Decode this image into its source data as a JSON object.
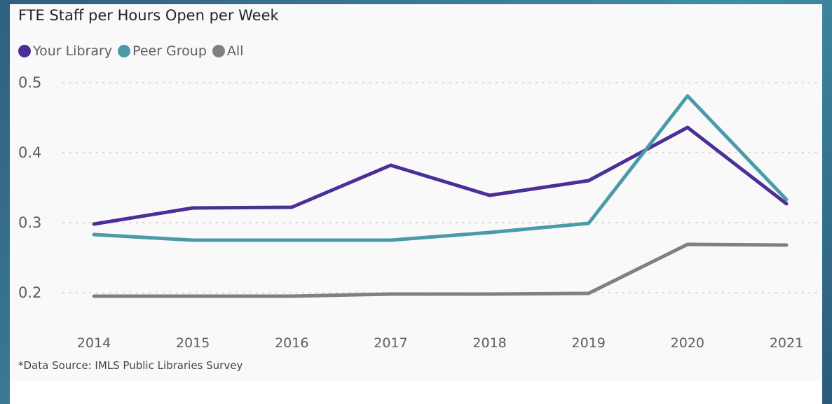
{
  "chart_data": {
    "type": "line",
    "title": "FTE Staff per Hours Open per Week",
    "xlabel": "",
    "ylabel": "",
    "x": [
      "2014",
      "2015",
      "2016",
      "2017",
      "2018",
      "2019",
      "2020",
      "2021"
    ],
    "yticks": [
      "0.5",
      "0.4",
      "0.3",
      "0.2"
    ],
    "ylim": [
      0.2,
      0.5
    ],
    "grid": true,
    "legend_position": "top-left",
    "series": [
      {
        "name": "Your Library",
        "color": "#4b2f96",
        "values": [
          0.298,
          0.321,
          0.322,
          0.382,
          0.339,
          0.36,
          0.436,
          0.327
        ]
      },
      {
        "name": "Peer Group",
        "color": "#4a9aa9",
        "values": [
          0.283,
          0.275,
          0.275,
          0.275,
          0.286,
          0.299,
          0.481,
          0.333
        ]
      },
      {
        "name": "All",
        "color": "#808080",
        "values": [
          0.195,
          0.195,
          0.195,
          0.198,
          0.198,
          0.199,
          0.269,
          0.268
        ]
      }
    ],
    "footnote": "*Data Source: IMLS Public Libraries Survey"
  }
}
